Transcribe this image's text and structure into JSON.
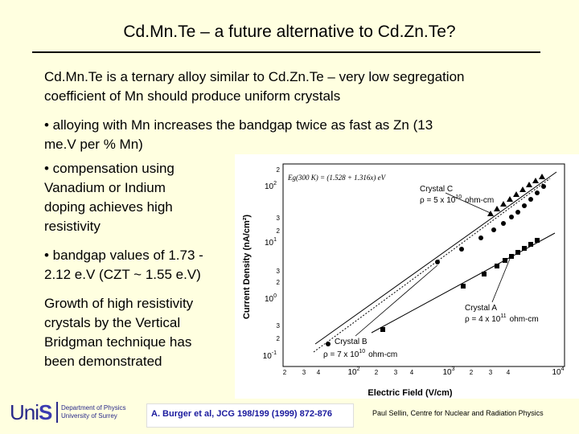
{
  "slide": {
    "title": "Cd.Mn.Te – a future alternative to Cd.Zn.Te?",
    "intro_line1": "Cd.Mn.Te is a ternary alloy similar to Cd.Zn.Te – very low segregation",
    "intro_line2": "coefficient of Mn should produce uniform crystals",
    "bullet1_line1": "• alloying with Mn increases the bandgap twice as fast as Zn (13",
    "bullet1_line2": "me.V per % Mn)",
    "bullet2_line1": "• compensation using",
    "bullet2_line2": "Vanadium or Indium",
    "bullet2_line3": "doping achieves high",
    "bullet2_line4": "resistivity",
    "bullet3_line1": "• bandgap values of 1.73 -",
    "bullet3_line2": "2.12 e.V (CZT ~ 1.55 e.V)",
    "growth_line1": "Growth of high resistivity",
    "growth_line2": "crystals by the Vertical",
    "growth_line3": "Bridgman technique has",
    "growth_line4": "been demonstrated"
  },
  "figure": {
    "ylabel": "Current Density (nA/cm²)",
    "xlabel": "Electric Field (V/cm)",
    "equation": "Eg(300 K) = (1.528 + 1.316x) eV",
    "y_ticks": [
      {
        "label": "2",
        "sup": ""
      },
      {
        "label": "10",
        "sup": "2"
      },
      {
        "label": "3",
        "sup": ""
      },
      {
        "label": "2",
        "sup": ""
      },
      {
        "label": "10",
        "sup": "1"
      },
      {
        "label": "3",
        "sup": ""
      },
      {
        "label": "2",
        "sup": ""
      },
      {
        "label": "10",
        "sup": "0"
      },
      {
        "label": "3",
        "sup": ""
      },
      {
        "label": "2",
        "sup": ""
      },
      {
        "label": "10",
        "sup": "-1"
      }
    ],
    "x_ticks": [
      {
        "label": "2",
        "sup": ""
      },
      {
        "label": "3",
        "sup": ""
      },
      {
        "label": "4",
        "sup": ""
      },
      {
        "label": "10",
        "sup": "2"
      },
      {
        "label": "2",
        "sup": ""
      },
      {
        "label": "3",
        "sup": ""
      },
      {
        "label": "4",
        "sup": ""
      },
      {
        "label": "10",
        "sup": "3"
      },
      {
        "label": "2",
        "sup": ""
      },
      {
        "label": "3",
        "sup": ""
      },
      {
        "label": "4",
        "sup": ""
      },
      {
        "label": "10",
        "sup": "4"
      }
    ],
    "crystal_c": {
      "name": "Crystal C",
      "rho": "ρ = 5 x 10",
      "rho_exp": "10",
      "unit": "ohm-cm"
    },
    "crystal_a": {
      "name": "Crystal A",
      "rho": "ρ = 4 x 10",
      "rho_exp": "11",
      "unit": "ohm-cm"
    },
    "crystal_b": {
      "name": "Crystal B",
      "rho": "ρ = 7 x 10",
      "rho_exp": "10",
      "unit": "ohm-cm"
    }
  },
  "footer": {
    "logo_uni": "Uni",
    "logo_s": "S",
    "dept_line1": "Department of Physics",
    "dept_line2": "University of Surrey",
    "citation": "A. Burger et al, JCG 198/199 (1999) 872-876",
    "credit": "Paul Sellin, Centre for Nuclear and Radiation Physics"
  },
  "colors": {
    "background": "#ffffe0",
    "citation_text": "#1a1a9e",
    "logo": "#2a2a8a"
  }
}
